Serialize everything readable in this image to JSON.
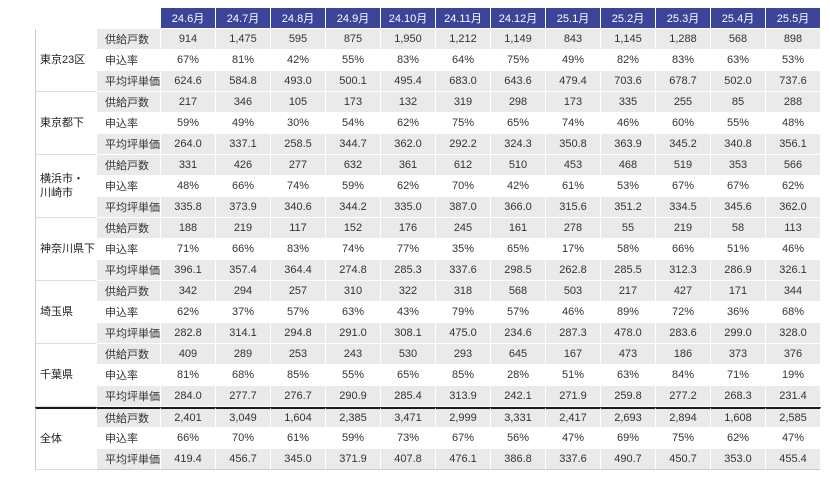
{
  "colors": {
    "header_bg": "#3a4499",
    "header_text": "#ffffff",
    "stripe": "#eaeaea",
    "total_separator": "#1a1a1a"
  },
  "chart_data": {
    "type": "table",
    "columns": [
      "24.6月",
      "24.7月",
      "24.8月",
      "24.9月",
      "24.10月",
      "24.11月",
      "24.12月",
      "25.1月",
      "25.2月",
      "25.3月",
      "25.4月",
      "25.5月"
    ],
    "metric_labels": [
      "供給戸数",
      "申込率",
      "平均坪単価"
    ],
    "groups": [
      {
        "region": "東京23区",
        "rows": [
          [
            "914",
            "1,475",
            "595",
            "875",
            "1,950",
            "1,212",
            "1,149",
            "843",
            "1,145",
            "1,288",
            "568",
            "898"
          ],
          [
            "67%",
            "81%",
            "42%",
            "55%",
            "83%",
            "64%",
            "75%",
            "49%",
            "82%",
            "83%",
            "63%",
            "53%"
          ],
          [
            "624.6",
            "584.8",
            "493.0",
            "500.1",
            "495.4",
            "683.0",
            "643.6",
            "479.4",
            "703.6",
            "678.7",
            "502.0",
            "737.6"
          ]
        ]
      },
      {
        "region": "東京都下",
        "rows": [
          [
            "217",
            "346",
            "105",
            "173",
            "132",
            "319",
            "298",
            "173",
            "335",
            "255",
            "85",
            "288"
          ],
          [
            "59%",
            "49%",
            "30%",
            "54%",
            "62%",
            "75%",
            "65%",
            "74%",
            "46%",
            "60%",
            "55%",
            "48%"
          ],
          [
            "264.0",
            "337.1",
            "258.5",
            "344.7",
            "362.0",
            "292.2",
            "324.3",
            "350.8",
            "363.9",
            "345.2",
            "340.8",
            "356.1"
          ]
        ]
      },
      {
        "region": "横浜市・\n川崎市",
        "rows": [
          [
            "331",
            "426",
            "277",
            "632",
            "361",
            "612",
            "510",
            "453",
            "468",
            "519",
            "353",
            "566"
          ],
          [
            "48%",
            "66%",
            "74%",
            "59%",
            "62%",
            "70%",
            "42%",
            "61%",
            "53%",
            "67%",
            "67%",
            "62%"
          ],
          [
            "335.8",
            "373.9",
            "340.6",
            "344.2",
            "335.0",
            "387.0",
            "366.0",
            "315.6",
            "351.2",
            "334.5",
            "345.6",
            "362.0"
          ]
        ]
      },
      {
        "region": "神奈川県下",
        "rows": [
          [
            "188",
            "219",
            "117",
            "152",
            "176",
            "245",
            "161",
            "278",
            "55",
            "219",
            "58",
            "113"
          ],
          [
            "71%",
            "66%",
            "83%",
            "74%",
            "77%",
            "35%",
            "65%",
            "17%",
            "58%",
            "66%",
            "51%",
            "46%"
          ],
          [
            "396.1",
            "357.4",
            "364.4",
            "274.8",
            "285.3",
            "337.6",
            "298.5",
            "262.8",
            "285.5",
            "312.3",
            "286.9",
            "326.1"
          ]
        ]
      },
      {
        "region": "埼玉県",
        "rows": [
          [
            "342",
            "294",
            "257",
            "310",
            "322",
            "318",
            "568",
            "503",
            "217",
            "427",
            "171",
            "344"
          ],
          [
            "62%",
            "37%",
            "57%",
            "63%",
            "43%",
            "79%",
            "57%",
            "46%",
            "89%",
            "72%",
            "36%",
            "68%"
          ],
          [
            "282.8",
            "314.1",
            "294.8",
            "291.0",
            "308.1",
            "475.0",
            "234.6",
            "287.3",
            "478.0",
            "283.6",
            "299.0",
            "328.0"
          ]
        ]
      },
      {
        "region": "千葉県",
        "rows": [
          [
            "409",
            "289",
            "253",
            "243",
            "530",
            "293",
            "645",
            "167",
            "473",
            "186",
            "373",
            "376"
          ],
          [
            "81%",
            "68%",
            "85%",
            "55%",
            "65%",
            "85%",
            "28%",
            "51%",
            "63%",
            "84%",
            "71%",
            "19%"
          ],
          [
            "284.0",
            "277.7",
            "276.7",
            "290.9",
            "285.4",
            "313.9",
            "242.1",
            "271.9",
            "259.8",
            "277.2",
            "268.3",
            "231.4"
          ]
        ]
      },
      {
        "region": "全体",
        "is_total": true,
        "rows": [
          [
            "2,401",
            "3,049",
            "1,604",
            "2,385",
            "3,471",
            "2,999",
            "3,331",
            "2,417",
            "2,693",
            "2,894",
            "1,608",
            "2,585"
          ],
          [
            "66%",
            "70%",
            "61%",
            "59%",
            "73%",
            "67%",
            "56%",
            "47%",
            "69%",
            "75%",
            "62%",
            "47%"
          ],
          [
            "419.4",
            "456.7",
            "345.0",
            "371.9",
            "407.8",
            "476.1",
            "386.8",
            "337.6",
            "490.7",
            "450.7",
            "353.0",
            "455.4"
          ]
        ]
      }
    ]
  }
}
